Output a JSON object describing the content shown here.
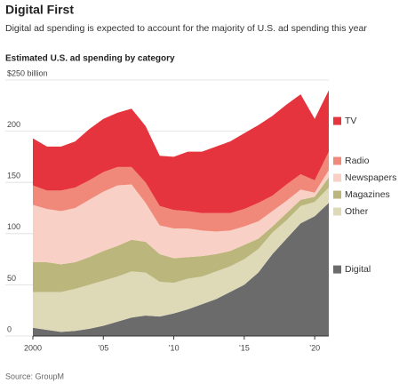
{
  "chart_data": {
    "type": "stacked-area",
    "title": "Digital First",
    "subtitle": "Digital ad spending is expected to account for the majority of U.S. ad spending this year",
    "chart_title": "Estimated U.S. ad spending by category",
    "source": "Source: GroupM",
    "x": [
      2000,
      2001,
      2002,
      2003,
      2004,
      2005,
      2006,
      2007,
      2008,
      2009,
      2010,
      2011,
      2012,
      2013,
      2014,
      2015,
      2016,
      2017,
      2018,
      2019,
      2020,
      2021
    ],
    "xlim": [
      2000,
      2021
    ],
    "xticks": [
      {
        "value": 2000,
        "label": "2000"
      },
      {
        "value": 2005,
        "label": "’05"
      },
      {
        "value": 2010,
        "label": "’10"
      },
      {
        "value": 2015,
        "label": "’15"
      },
      {
        "value": 2020,
        "label": "’20"
      }
    ],
    "ylim": [
      0,
      250
    ],
    "yticks": [
      0,
      50,
      100,
      150,
      200,
      {
        "value": 250,
        "label": "$250 billion"
      }
    ],
    "grid": true,
    "series": [
      {
        "name": "Digital",
        "color": "#6b6b6b",
        "values": [
          8,
          6,
          4,
          5,
          7,
          10,
          14,
          18,
          20,
          19,
          22,
          26,
          31,
          36,
          43,
          50,
          62,
          80,
          95,
          110,
          117,
          130
        ]
      },
      {
        "name": "Other",
        "color": "#dedab8",
        "values": [
          35,
          37,
          39,
          41,
          43,
          44,
          44,
          45,
          42,
          34,
          30,
          30,
          27,
          27,
          25,
          25,
          23,
          21,
          18,
          17,
          14,
          15
        ]
      },
      {
        "name": "Magazines",
        "color": "#bbb67c",
        "values": [
          29,
          29,
          27,
          26,
          27,
          29,
          30,
          31,
          30,
          27,
          24,
          21,
          20,
          17,
          15,
          14,
          10,
          6,
          7,
          6,
          5,
          10
        ]
      },
      {
        "name": "Newspapers",
        "color": "#f9d0c5",
        "values": [
          56,
          52,
          52,
          53,
          56,
          58,
          59,
          54,
          38,
          28,
          29,
          28,
          25,
          22,
          20,
          18,
          17,
          15,
          12,
          10,
          4,
          7
        ]
      },
      {
        "name": "Radio",
        "color": "#f0897a",
        "values": [
          19,
          18,
          20,
          20,
          19,
          19,
          18,
          17,
          20,
          19,
          18,
          17,
          17,
          18,
          17,
          17,
          18,
          15,
          16,
          15,
          12,
          18
        ]
      },
      {
        "name": "TV",
        "color": "#e6343f",
        "values": [
          46,
          43,
          43,
          45,
          50,
          52,
          53,
          57,
          55,
          49,
          52,
          58,
          60,
          65,
          70,
          74,
          76,
          78,
          78,
          78,
          60,
          60
        ]
      }
    ]
  }
}
